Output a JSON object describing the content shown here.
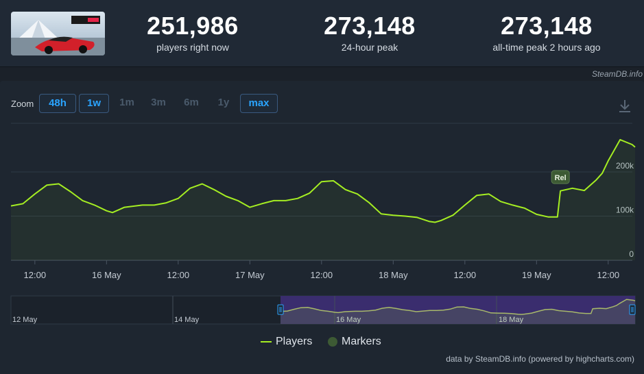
{
  "stats": [
    {
      "value": "251,986",
      "label": "players right now"
    },
    {
      "value": "273,148",
      "label": "24-hour peak"
    },
    {
      "value": "273,148",
      "label": "all-time peak 2 hours ago"
    }
  ],
  "credit_top": "SteamDB.info",
  "zoom": {
    "label": "Zoom",
    "buttons": [
      {
        "label": "48h",
        "active": true
      },
      {
        "label": "1w",
        "active": true
      },
      {
        "label": "1m",
        "active": false
      },
      {
        "label": "3m",
        "active": false
      },
      {
        "label": "6m",
        "active": false
      },
      {
        "label": "1y",
        "active": false
      },
      {
        "label": "max",
        "active": true
      }
    ]
  },
  "legend": {
    "players": "Players",
    "markers": "Markers"
  },
  "credit_bottom": "data by SteamDB.info (powered by highcharts.com)",
  "colors": {
    "line": "#a5ee22",
    "marker": "#3d5a34",
    "navigator": "#3a2d6e"
  },
  "chart_data": {
    "type": "line",
    "x_unit": "hours since 15 May 00:00",
    "y_ticks": [
      0,
      100000,
      200000
    ],
    "y_tick_labels": [
      "0",
      "100k",
      "200k"
    ],
    "ylim": [
      0,
      310000
    ],
    "x_ticks": [
      {
        "x": 12,
        "label": "12:00"
      },
      {
        "x": 24,
        "label": "16 May"
      },
      {
        "x": 36,
        "label": "12:00"
      },
      {
        "x": 48,
        "label": "17 May"
      },
      {
        "x": 60,
        "label": "12:00"
      },
      {
        "x": 72,
        "label": "18 May"
      },
      {
        "x": 84,
        "label": "12:00"
      },
      {
        "x": 96,
        "label": "19 May"
      },
      {
        "x": 108,
        "label": "12:00"
      }
    ],
    "xlim": [
      8,
      112.5
    ],
    "series": [
      {
        "name": "Players",
        "x": [
          8,
          10,
          12,
          14,
          16,
          18,
          20,
          22,
          24,
          25,
          27,
          30,
          32,
          34,
          36,
          38,
          40,
          42,
          44,
          46,
          48,
          50,
          52,
          54,
          56,
          58,
          60,
          62,
          64,
          66,
          68,
          70,
          72,
          74,
          76,
          78,
          79,
          80,
          82,
          84,
          86,
          88,
          90,
          92,
          94,
          96,
          98,
          99.5,
          100,
          102,
          104,
          106,
          107,
          108,
          110,
          112,
          112.5
        ],
        "y": [
          123000,
          128000,
          150000,
          170000,
          173000,
          155000,
          135000,
          125000,
          112000,
          108000,
          120000,
          125000,
          125000,
          130000,
          140000,
          163000,
          173000,
          160000,
          145000,
          135000,
          120000,
          128000,
          135000,
          135000,
          140000,
          152000,
          178000,
          180000,
          160000,
          150000,
          130000,
          105000,
          102000,
          100000,
          97000,
          88000,
          86000,
          90000,
          102000,
          125000,
          147000,
          150000,
          133000,
          125000,
          118000,
          104000,
          98000,
          98000,
          157000,
          163000,
          158000,
          182000,
          197000,
          225000,
          273000,
          262000,
          256000
        ]
      }
    ],
    "markers": [
      {
        "x": 100,
        "label": "Rel"
      }
    ],
    "navigator": {
      "labels": [
        "12 May",
        "14 May",
        "16 May",
        "18 May"
      ]
    }
  }
}
